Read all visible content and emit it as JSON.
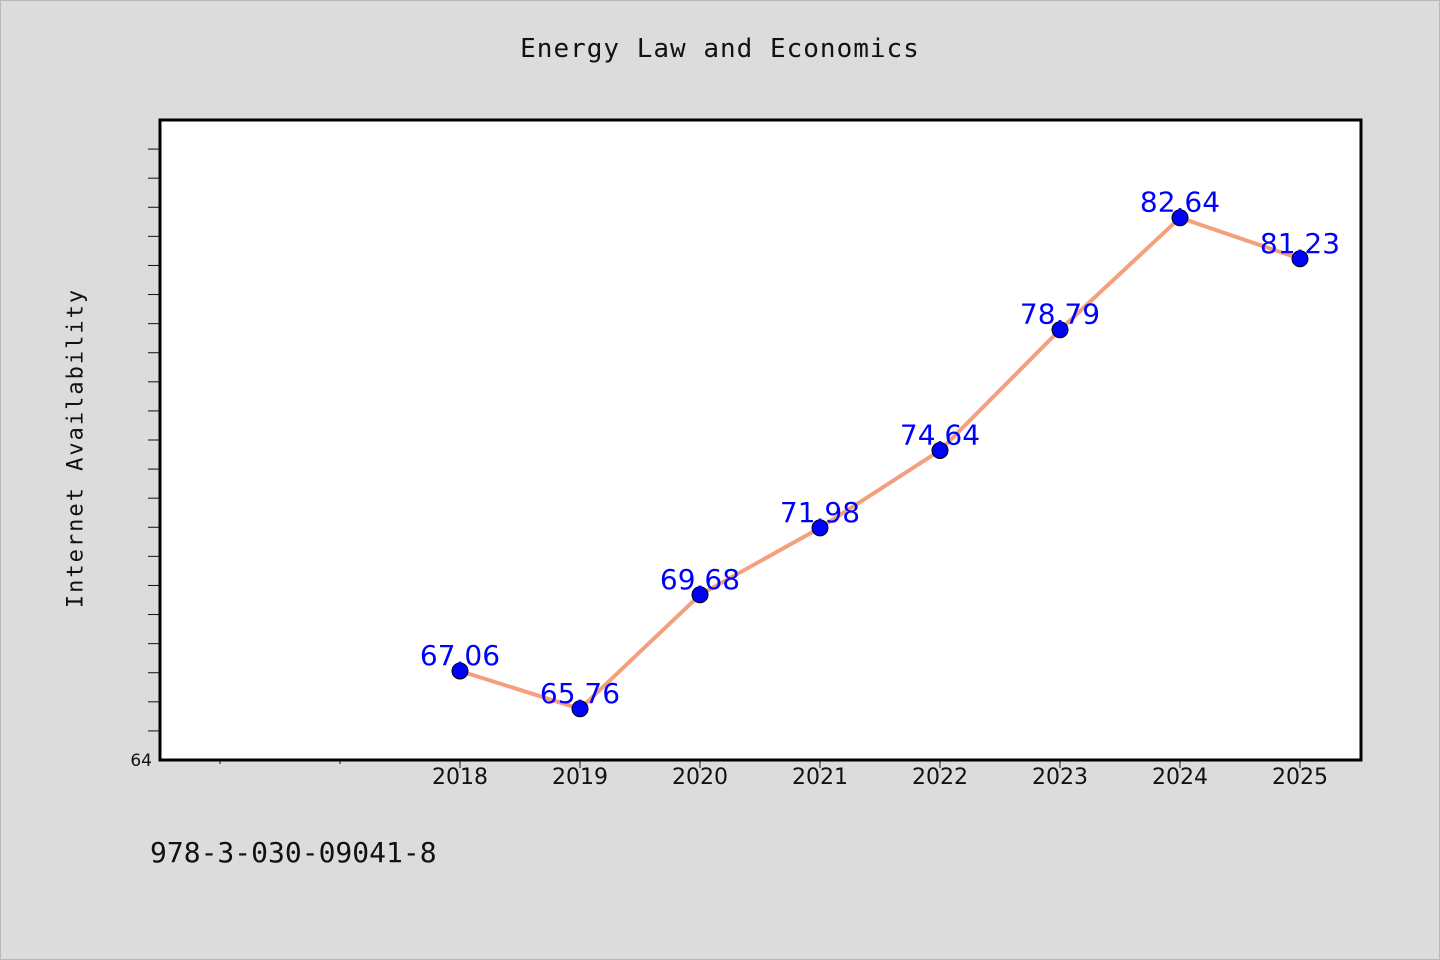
{
  "chart_data": {
    "type": "line",
    "title": "Energy Law and Economics",
    "xlabel": "",
    "ylabel": "Internet Availability",
    "categories": [
      "2018",
      "2019",
      "2020",
      "2021",
      "2022",
      "2023",
      "2024",
      "2025"
    ],
    "series": [
      {
        "values": [
          67.06,
          65.76,
          69.68,
          71.98,
          74.64,
          78.79,
          82.64,
          81.23
        ],
        "line_color": "#f4a07e",
        "marker_color": "#0000ff",
        "label_color": "#0000ff"
      }
    ],
    "ylim": [
      64,
      86
    ],
    "y_tick_labels": [
      "64"
    ],
    "grid": false,
    "legend": false
  },
  "footer": {
    "isbn": "978-3-030-09041-8"
  }
}
